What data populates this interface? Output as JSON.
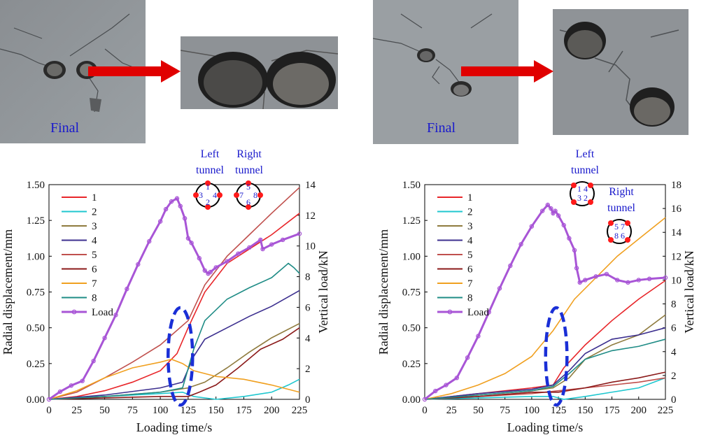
{
  "panels": [
    {
      "final_label": "Final",
      "tunnel_left_label": [
        "Left",
        "tunnel"
      ],
      "tunnel_right_label": [
        "Right",
        "tunnel"
      ],
      "left_tunnel_numbers": [
        "1",
        "3",
        "4",
        "2"
      ],
      "right_tunnel_numbers": [
        "5",
        "7",
        "8",
        "6"
      ]
    },
    {
      "final_label": "Final",
      "tunnel_left_label": [
        "Left",
        "tunnel"
      ],
      "tunnel_right_label": [
        "Right",
        "tunnel"
      ],
      "left_tunnel_numbers": [
        "1",
        "4",
        "3",
        "2"
      ],
      "right_tunnel_numbers": [
        "5",
        "7",
        "8",
        "6"
      ]
    }
  ],
  "colors": {
    "s1": "#e8262a",
    "s2": "#1fc7cf",
    "s3": "#8f7b3e",
    "s4": "#3c2f8f",
    "s5": "#c0504d",
    "s6": "#8b1a1a",
    "s7": "#f0a020",
    "s8": "#1f8c86",
    "load": "#a855d6",
    "ellipse": "#1a2fd6",
    "arrow": "#e00000"
  },
  "chart_data": [
    {
      "type": "line",
      "xlabel": "Loading time/s",
      "ylabel": "Radial displacement/mm",
      "y2label": "Vertical load/kN",
      "xlim": [
        0,
        225
      ],
      "ylim": [
        0,
        1.5
      ],
      "y2lim": [
        0,
        14
      ],
      "xticks": [
        "0",
        "25",
        "50",
        "75",
        "100",
        "125",
        "150",
        "175",
        "200",
        "225"
      ],
      "yticks": [
        "0.00",
        "0.25",
        "0.50",
        "0.75",
        "1.00",
        "1.25",
        "1.50"
      ],
      "y2ticks": [
        "0",
        "2",
        "4",
        "6",
        "8",
        "10",
        "12",
        "14"
      ],
      "legend": [
        "1",
        "2",
        "3",
        "4",
        "5",
        "6",
        "7",
        "8",
        "Load"
      ],
      "series": [
        {
          "name": "1",
          "x": [
            0,
            25,
            50,
            75,
            100,
            115,
            125,
            140,
            160,
            180,
            200,
            225
          ],
          "y": [
            0,
            0.02,
            0.06,
            0.12,
            0.2,
            0.32,
            0.5,
            0.75,
            0.95,
            1.05,
            1.15,
            1.3
          ]
        },
        {
          "name": "2",
          "x": [
            0,
            50,
            100,
            120,
            130,
            150,
            175,
            200,
            215,
            225
          ],
          "y": [
            0,
            0.02,
            0.04,
            0.05,
            0.02,
            0.0,
            0.02,
            0.05,
            0.1,
            0.14
          ]
        },
        {
          "name": "3",
          "x": [
            0,
            50,
            100,
            125,
            140,
            160,
            180,
            200,
            225
          ],
          "y": [
            0,
            0.02,
            0.05,
            0.08,
            0.12,
            0.22,
            0.33,
            0.43,
            0.53
          ]
        },
        {
          "name": "4",
          "x": [
            0,
            50,
            100,
            120,
            130,
            140,
            160,
            180,
            200,
            225
          ],
          "y": [
            0,
            0.03,
            0.08,
            0.12,
            0.3,
            0.42,
            0.5,
            0.58,
            0.65,
            0.76
          ]
        },
        {
          "name": "5",
          "x": [
            0,
            25,
            50,
            75,
            100,
            125,
            140,
            160,
            180,
            200,
            225
          ],
          "y": [
            0,
            0.05,
            0.15,
            0.26,
            0.38,
            0.55,
            0.8,
            1.0,
            1.15,
            1.3,
            1.48
          ]
        },
        {
          "name": "6",
          "x": [
            0,
            50,
            100,
            125,
            135,
            150,
            170,
            190,
            210,
            225
          ],
          "y": [
            0,
            0.01,
            0.02,
            0.02,
            0.05,
            0.1,
            0.22,
            0.35,
            0.42,
            0.5
          ]
        },
        {
          "name": "7",
          "x": [
            0,
            25,
            50,
            75,
            100,
            110,
            120,
            130,
            150,
            175,
            200,
            225
          ],
          "y": [
            0,
            0.06,
            0.15,
            0.22,
            0.26,
            0.28,
            0.25,
            0.2,
            0.16,
            0.14,
            0.1,
            0.05
          ]
        },
        {
          "name": "8",
          "x": [
            0,
            50,
            100,
            120,
            130,
            140,
            160,
            180,
            200,
            215,
            220,
            225
          ],
          "y": [
            0,
            0.02,
            0.05,
            0.08,
            0.35,
            0.55,
            0.7,
            0.78,
            0.85,
            0.95,
            0.92,
            0.88
          ]
        }
      ],
      "load": {
        "name": "Load",
        "x": [
          0,
          10,
          20,
          30,
          40,
          50,
          60,
          70,
          80,
          90,
          100,
          105,
          110,
          115,
          118,
          122,
          125,
          128,
          135,
          140,
          143,
          145,
          150,
          160,
          170,
          180,
          190,
          192,
          200,
          210,
          225
        ],
        "y": [
          0,
          0.5,
          0.9,
          1.2,
          2.5,
          4.0,
          5.5,
          7.2,
          8.8,
          10.3,
          11.6,
          12.4,
          12.9,
          13.1,
          12.6,
          11.8,
          10.5,
          10.2,
          9.2,
          8.4,
          8.2,
          8.3,
          8.6,
          9.0,
          9.5,
          9.9,
          10.4,
          9.8,
          10.1,
          10.4,
          10.8
        ]
      },
      "ellipse": {
        "cx": 118,
        "cy": 0.3,
        "rx": 11,
        "ry": 0.34
      }
    },
    {
      "type": "line",
      "xlabel": "Loading time/s",
      "ylabel": "Radial displacement/mm",
      "y2label": "Vertical load/kN",
      "xlim": [
        0,
        225
      ],
      "ylim": [
        0,
        1.5
      ],
      "y2lim": [
        0,
        18
      ],
      "xticks": [
        "0",
        "25",
        "50",
        "75",
        "100",
        "125",
        "150",
        "175",
        "200",
        "225"
      ],
      "yticks": [
        "0.00",
        "0.25",
        "0.50",
        "0.75",
        "1.00",
        "1.25",
        "1.50"
      ],
      "y2ticks": [
        "0",
        "2",
        "4",
        "6",
        "8",
        "10",
        "12",
        "14",
        "16",
        "18"
      ],
      "legend": [
        "1",
        "2",
        "3",
        "4",
        "5",
        "6",
        "7",
        "8",
        "Load"
      ],
      "series": [
        {
          "name": "1",
          "x": [
            0,
            50,
            100,
            120,
            130,
            150,
            175,
            200,
            225
          ],
          "y": [
            0,
            0.04,
            0.08,
            0.1,
            0.22,
            0.38,
            0.55,
            0.7,
            0.83
          ]
        },
        {
          "name": "2",
          "x": [
            0,
            50,
            100,
            120,
            130,
            150,
            175,
            200,
            225
          ],
          "y": [
            0,
            0.01,
            0.02,
            0.02,
            0.0,
            0.02,
            0.05,
            0.08,
            0.15
          ]
        },
        {
          "name": "3",
          "x": [
            0,
            50,
            100,
            120,
            135,
            150,
            175,
            200,
            225
          ],
          "y": [
            0,
            0.03,
            0.06,
            0.08,
            0.15,
            0.28,
            0.38,
            0.45,
            0.59
          ]
        },
        {
          "name": "4",
          "x": [
            0,
            50,
            100,
            120,
            135,
            150,
            175,
            200,
            225
          ],
          "y": [
            0,
            0.04,
            0.07,
            0.1,
            0.2,
            0.32,
            0.42,
            0.45,
            0.5
          ]
        },
        {
          "name": "5",
          "x": [
            0,
            50,
            100,
            125,
            150,
            175,
            200,
            225
          ],
          "y": [
            0,
            0.02,
            0.04,
            0.06,
            0.08,
            0.1,
            0.12,
            0.15
          ]
        },
        {
          "name": "6",
          "x": [
            0,
            50,
            100,
            125,
            150,
            175,
            200,
            225
          ],
          "y": [
            0,
            0.02,
            0.05,
            0.05,
            0.08,
            0.12,
            0.15,
            0.19
          ]
        },
        {
          "name": "7",
          "x": [
            0,
            25,
            50,
            75,
            100,
            120,
            140,
            160,
            180,
            200,
            225
          ],
          "y": [
            0,
            0.04,
            0.1,
            0.18,
            0.3,
            0.48,
            0.7,
            0.85,
            1.0,
            1.12,
            1.27
          ]
        },
        {
          "name": "8",
          "x": [
            0,
            50,
            100,
            120,
            135,
            150,
            175,
            200,
            225
          ],
          "y": [
            0,
            0.03,
            0.06,
            0.09,
            0.18,
            0.28,
            0.34,
            0.37,
            0.42
          ]
        }
      ],
      "load": {
        "name": "Load",
        "x": [
          0,
          10,
          20,
          30,
          40,
          50,
          60,
          70,
          80,
          90,
          100,
          110,
          115,
          118,
          120,
          122,
          125,
          130,
          135,
          140,
          142,
          145,
          150,
          160,
          170,
          180,
          190,
          200,
          210,
          225
        ],
        "y": [
          0,
          0.7,
          1.2,
          1.8,
          3.5,
          5.3,
          7.3,
          9.3,
          11.2,
          13.0,
          14.5,
          15.8,
          16.3,
          16.0,
          15.6,
          15.8,
          15.4,
          14.6,
          13.5,
          12.5,
          11.0,
          9.8,
          10.0,
          10.3,
          10.5,
          10.0,
          9.8,
          10.0,
          10.1,
          10.2
        ]
      },
      "ellipse": {
        "cx": 123,
        "cy": 0.3,
        "rx": 10,
        "ry": 0.34
      }
    }
  ]
}
